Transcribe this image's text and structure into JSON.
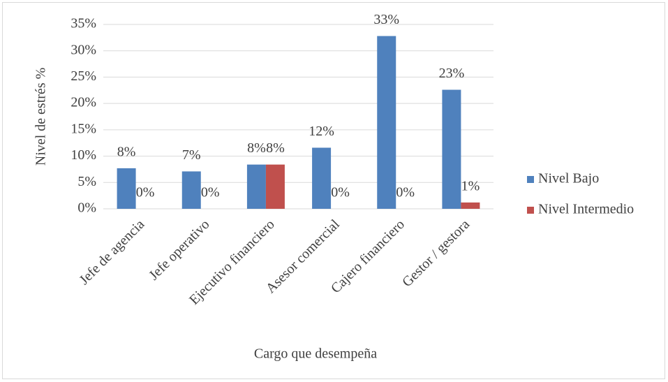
{
  "chart_data": {
    "type": "bar",
    "categories": [
      "Jefe de agencia",
      "Jefe operativo",
      "Ejecutivo financiero",
      "Asesor comercial",
      "Cajero financiero",
      "Gestor / gestora"
    ],
    "series": [
      {
        "name": "Nivel Bajo",
        "color": "#4f81bd",
        "values": [
          7.7,
          7.1,
          8.4,
          11.6,
          32.8,
          22.6
        ],
        "value_labels": [
          "8%",
          "7%",
          "8%",
          "12%",
          "33%",
          "23%"
        ]
      },
      {
        "name": "Nivel Intermedio",
        "color": "#c0504d",
        "values": [
          0,
          0,
          8.4,
          0,
          0,
          1.2
        ],
        "value_labels": [
          "0%",
          "0%",
          "8%",
          "0%",
          "0%",
          "1%"
        ]
      }
    ],
    "ylim": [
      0,
      35
    ],
    "yticks": [
      {
        "value": 0,
        "label": "0%"
      },
      {
        "value": 5,
        "label": "5%"
      },
      {
        "value": 10,
        "label": "10%"
      },
      {
        "value": 15,
        "label": "15%"
      },
      {
        "value": 20,
        "label": "20%"
      },
      {
        "value": 25,
        "label": "25%"
      },
      {
        "value": 30,
        "label": "30%"
      },
      {
        "value": 35,
        "label": "35%"
      }
    ],
    "grid": true,
    "xlabel": "Cargo que desempeña",
    "ylabel": "Nivel de estrés %",
    "legend": "right"
  }
}
